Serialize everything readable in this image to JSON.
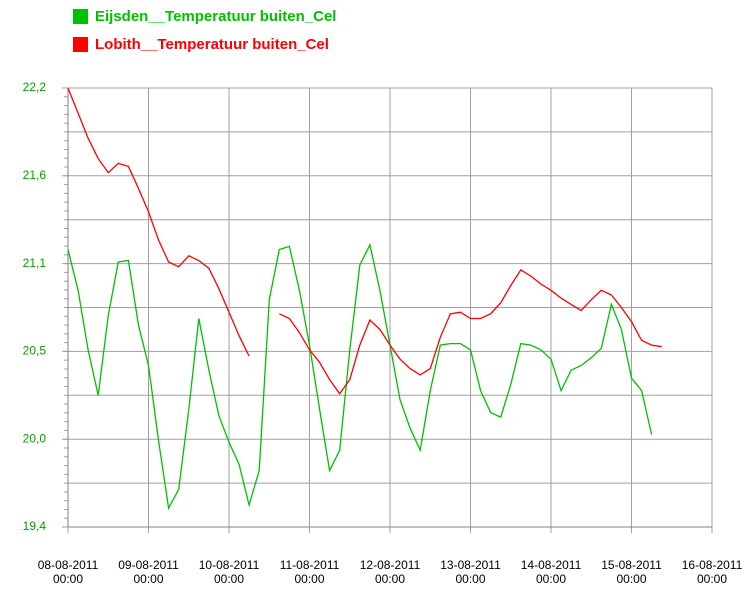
{
  "chart_data": {
    "type": "line",
    "x": [
      "2011-08-08T00:00",
      "2011-08-08T03:00",
      "2011-08-08T06:00",
      "2011-08-08T09:00",
      "2011-08-08T12:00",
      "2011-08-08T15:00",
      "2011-08-08T18:00",
      "2011-08-08T21:00",
      "2011-08-09T00:00",
      "2011-08-09T03:00",
      "2011-08-09T06:00",
      "2011-08-09T09:00",
      "2011-08-09T12:00",
      "2011-08-09T15:00",
      "2011-08-09T18:00",
      "2011-08-09T21:00",
      "2011-08-10T00:00",
      "2011-08-10T03:00",
      "2011-08-10T06:00",
      "2011-08-10T09:00",
      "2011-08-10T12:00",
      "2011-08-10T15:00",
      "2011-08-10T18:00",
      "2011-08-10T21:00",
      "2011-08-11T00:00",
      "2011-08-11T03:00",
      "2011-08-11T06:00",
      "2011-08-11T09:00",
      "2011-08-11T12:00",
      "2011-08-11T15:00",
      "2011-08-11T18:00",
      "2011-08-11T21:00",
      "2011-08-12T00:00",
      "2011-08-12T03:00",
      "2011-08-12T06:00",
      "2011-08-12T09:00",
      "2011-08-12T12:00",
      "2011-08-12T15:00",
      "2011-08-12T18:00",
      "2011-08-12T21:00",
      "2011-08-13T00:00",
      "2011-08-13T03:00",
      "2011-08-13T06:00",
      "2011-08-13T09:00",
      "2011-08-13T12:00",
      "2011-08-13T15:00",
      "2011-08-13T18:00",
      "2011-08-13T21:00",
      "2011-08-14T00:00",
      "2011-08-14T03:00",
      "2011-08-14T06:00",
      "2011-08-14T09:00",
      "2011-08-14T12:00",
      "2011-08-14T15:00",
      "2011-08-14T18:00",
      "2011-08-14T21:00",
      "2011-08-15T00:00",
      "2011-08-15T03:00",
      "2011-08-15T06:00",
      "2011-08-15T09:00"
    ],
    "series": [
      {
        "name": "Eijsden__Temperatuur buiten_Cel",
        "color": "#00c000",
        "values": [
          21.17,
          20.91,
          20.53,
          20.24,
          20.75,
          21.09,
          21.1,
          20.69,
          20.43,
          19.95,
          19.52,
          19.64,
          20.15,
          20.73,
          20.4,
          20.11,
          19.94,
          19.8,
          19.54,
          19.76,
          20.85,
          21.17,
          21.19,
          20.91,
          20.56,
          20.15,
          19.76,
          19.89,
          20.53,
          21.07,
          21.2,
          20.91,
          20.56,
          20.21,
          20.03,
          19.89,
          20.27,
          20.56,
          20.57,
          20.57,
          20.53,
          20.27,
          20.13,
          20.1,
          20.31,
          20.57,
          20.56,
          20.53,
          20.47,
          20.27,
          20.4,
          20.43,
          20.48,
          20.54,
          20.82,
          20.66,
          20.35,
          20.27,
          19.99,
          null
        ]
      },
      {
        "name": "Lobith__Temperatuur buiten_Cel",
        "color": "#ff0000",
        "values": [
          22.2,
          22.04,
          21.88,
          21.75,
          21.66,
          21.72,
          21.7,
          21.56,
          21.41,
          21.23,
          21.09,
          21.06,
          21.13,
          21.1,
          21.05,
          20.92,
          20.77,
          20.62,
          20.49,
          null,
          null,
          20.76,
          20.73,
          20.64,
          20.53,
          20.45,
          20.34,
          20.25,
          20.34,
          20.56,
          20.72,
          20.66,
          20.56,
          20.47,
          20.41,
          20.37,
          20.41,
          20.61,
          20.76,
          20.77,
          20.73,
          20.73,
          20.76,
          20.83,
          20.94,
          21.04,
          21.0,
          20.95,
          20.91,
          20.86,
          20.82,
          20.78,
          20.85,
          20.91,
          20.88,
          20.8,
          20.71,
          20.59,
          20.56,
          20.55
        ]
      }
    ],
    "xlim": [
      "2011-08-08T00:00",
      "2011-08-16T00:00"
    ],
    "xticks": [
      {
        "value": "2011-08-08T00:00",
        "label": [
          "08-08-2011",
          "00:00"
        ]
      },
      {
        "value": "2011-08-09T00:00",
        "label": [
          "09-08-2011",
          "00:00"
        ]
      },
      {
        "value": "2011-08-10T00:00",
        "label": [
          "10-08-2011",
          "00:00"
        ]
      },
      {
        "value": "2011-08-11T00:00",
        "label": [
          "11-08-2011",
          "00:00"
        ]
      },
      {
        "value": "2011-08-12T00:00",
        "label": [
          "12-08-2011",
          "00:00"
        ]
      },
      {
        "value": "2011-08-13T00:00",
        "label": [
          "13-08-2011",
          "00:00"
        ]
      },
      {
        "value": "2011-08-14T00:00",
        "label": [
          "14-08-2011",
          "00:00"
        ]
      },
      {
        "value": "2011-08-15T00:00",
        "label": [
          "15-08-2011",
          "00:00"
        ]
      },
      {
        "value": "2011-08-16T00:00",
        "label": [
          "16-08-2011",
          "00:00"
        ]
      }
    ],
    "ylim": [
      19.4,
      22.2
    ],
    "yticks": [
      {
        "value": 19.4,
        "label": "19,4"
      },
      {
        "value": 19.96,
        "label": "20,0"
      },
      {
        "value": 20.52,
        "label": "20,5"
      },
      {
        "value": 21.08,
        "label": "21,1"
      },
      {
        "value": 21.64,
        "label": "21,6"
      },
      {
        "value": 22.2,
        "label": "22,2"
      }
    ],
    "minor_yticks": [
      19.68,
      20.24,
      20.8,
      21.36,
      21.92
    ],
    "grid": true
  }
}
